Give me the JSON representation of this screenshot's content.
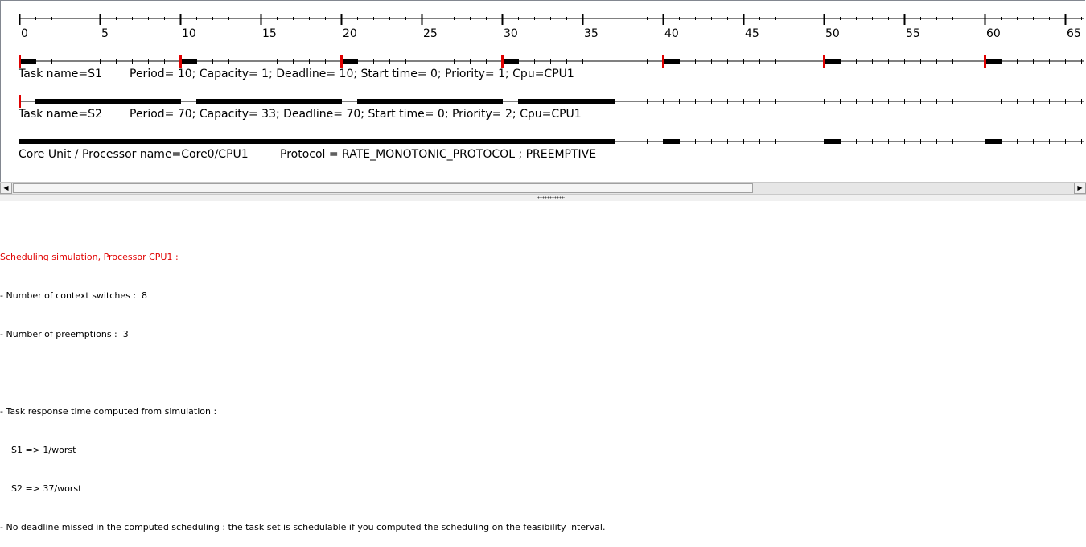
{
  "timeline": {
    "tick_labels": [
      "0",
      "5",
      "10",
      "15",
      "20",
      "25",
      "30",
      "35",
      "40",
      "45",
      "50",
      "55",
      "60",
      "65"
    ],
    "tasks": [
      {
        "label_name": "Task name=S1",
        "label_params": "Period= 10; Capacity= 1; Deadline= 10; Start time= 0; Priority= 1; Cpu=CPU1",
        "releases": [
          0,
          10,
          20,
          30,
          40,
          50,
          60
        ],
        "executions": [
          [
            0,
            1
          ],
          [
            10,
            11
          ],
          [
            20,
            21
          ],
          [
            30,
            31
          ],
          [
            40,
            41
          ],
          [
            50,
            51
          ],
          [
            60,
            61
          ]
        ]
      },
      {
        "label_name": "Task name=S2",
        "label_params": "Period= 70; Capacity= 33; Deadline= 70; Start time= 0; Priority= 2; Cpu=CPU1",
        "releases": [
          0
        ],
        "executions": [
          [
            1,
            10
          ],
          [
            11,
            20
          ],
          [
            21,
            30
          ],
          [
            31,
            37
          ]
        ]
      }
    ],
    "processor": {
      "label_name": "Core Unit / Processor name=Core0/CPU1",
      "label_protocol": "Protocol = RATE_MONOTONIC_PROTOCOL ; PREEMPTIVE",
      "busy": [
        [
          0,
          37
        ],
        [
          40,
          41
        ],
        [
          50,
          51
        ],
        [
          60,
          61
        ]
      ]
    },
    "colors": {
      "release": "#e00000",
      "execution": "#000000",
      "axis": "#000000"
    }
  },
  "scrollbar": {
    "left_icon": "arrow-left-icon",
    "right_icon": "arrow-right-icon"
  },
  "report": {
    "title": "Scheduling simulation, Processor CPU1 :",
    "lines": [
      "- Number of context switches :  8",
      "- Number of preemptions :  3",
      "",
      "- Task response time computed from simulation :",
      "    S1 => 1/worst",
      "    S2 => 37/worst",
      "- No deadline missed in the computed scheduling : the task set is schedulable if you computed the scheduling on the feasibility interval."
    ]
  }
}
